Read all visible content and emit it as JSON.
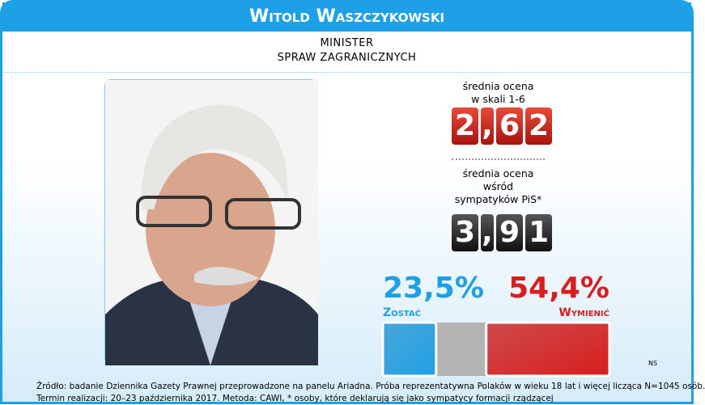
{
  "header": {
    "title": "Witold Waszczykowski",
    "subtitle": [
      "MINISTER",
      "SPRAW ZAGRANICZNYCH"
    ]
  },
  "scores": [
    {
      "label": [
        "średnia ocena",
        "w skali 1-6"
      ],
      "digits": [
        "2",
        ",",
        "6",
        "2"
      ],
      "color": "red"
    },
    {
      "label": [
        "średnia ocena",
        "wśród",
        "sympatyków PiS*"
      ],
      "digits": [
        "3",
        ",",
        "9",
        "1"
      ],
      "color": "black"
    }
  ],
  "chart_data": {
    "type": "bar",
    "xlim": [
      0,
      100
    ],
    "series": [
      {
        "name": "Zostać",
        "color": "#1ea0e6",
        "values": [
          23.5
        ],
        "value_labels": [
          "23,5%"
        ]
      },
      {
        "name": "Wymienić",
        "color": "#d81e1e",
        "values": [
          54.4
        ],
        "value_labels": [
          "54,4%"
        ]
      }
    ],
    "rest_color": "#b4b4b4"
  },
  "note": "NS",
  "footer": [
    "Źródło: badanie Dziennika Gazety Prawnej przeprowadzone na panelu Ariadna. Próba reprezentatywna Polaków w wieku 18 lat i więcej licząca N=1045 osób.",
    "Termin realizacji: 20–23 października 2017. Metoda: CAWI, * osoby, które deklarują się jako sympatycy formacji rządzącej"
  ]
}
